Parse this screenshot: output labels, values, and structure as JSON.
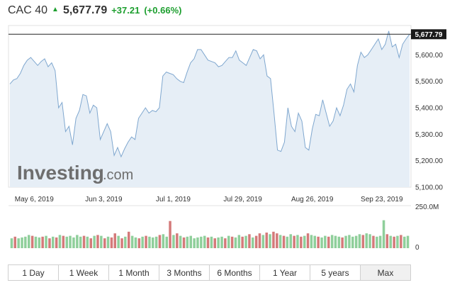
{
  "header": {
    "name": "CAC 40",
    "price": "5,677.79",
    "change": "+37.21",
    "change_pct": "(+0.66%)",
    "up_color": "#1d9f2f"
  },
  "last_label": "5,677.79",
  "logo": {
    "main": "Investing",
    "suffix": ".com"
  },
  "volume_label": "250.0M",
  "volume_zero": "0",
  "tabs": [
    {
      "label": "1 Day",
      "active": false
    },
    {
      "label": "1 Week",
      "active": false
    },
    {
      "label": "1 Month",
      "active": false
    },
    {
      "label": "3 Months",
      "active": false
    },
    {
      "label": "6 Months",
      "active": false
    },
    {
      "label": "1 Year",
      "active": false
    },
    {
      "label": "5 years",
      "active": false
    },
    {
      "label": "Max",
      "active": true
    }
  ],
  "chart_data": {
    "type": "area",
    "title": "",
    "xlabel": "",
    "ylabel": "",
    "ylim": [
      5100,
      5700
    ],
    "yticks": [
      5100,
      5200,
      5300,
      5400,
      5500,
      5600
    ],
    "ytick_labels": [
      "5,100.00",
      "5,200.00",
      "5,300.00",
      "5,400.00",
      "5,500.00",
      "5,600.00"
    ],
    "x_ticks": [
      {
        "label": "May 6, 2019",
        "index": 7
      },
      {
        "label": "Jun 3, 2019",
        "index": 27
      },
      {
        "label": "Jul 1, 2019",
        "index": 47
      },
      {
        "label": "Jul 29, 2019",
        "index": 67
      },
      {
        "label": "Aug 26, 2019",
        "index": 87
      },
      {
        "label": "Sep 23, 2019",
        "index": 107
      }
    ],
    "line_color": "#7fa7cf",
    "fill_color": "#e6eef6",
    "values": [
      5490,
      5505,
      5510,
      5530,
      5560,
      5580,
      5590,
      5575,
      5560,
      5575,
      5585,
      5555,
      5570,
      5540,
      5400,
      5420,
      5310,
      5330,
      5260,
      5360,
      5390,
      5450,
      5445,
      5380,
      5410,
      5400,
      5280,
      5310,
      5340,
      5310,
      5220,
      5250,
      5215,
      5245,
      5270,
      5290,
      5280,
      5360,
      5380,
      5400,
      5380,
      5390,
      5385,
      5400,
      5520,
      5535,
      5530,
      5525,
      5510,
      5500,
      5495,
      5535,
      5570,
      5585,
      5620,
      5620,
      5600,
      5580,
      5575,
      5570,
      5555,
      5560,
      5575,
      5590,
      5590,
      5615,
      5580,
      5570,
      5560,
      5590,
      5620,
      5615,
      5585,
      5600,
      5520,
      5510,
      5380,
      5240,
      5235,
      5270,
      5400,
      5330,
      5310,
      5380,
      5350,
      5250,
      5240,
      5320,
      5375,
      5370,
      5430,
      5380,
      5330,
      5350,
      5400,
      5370,
      5410,
      5470,
      5490,
      5460,
      5560,
      5610,
      5590,
      5600,
      5620,
      5640,
      5660,
      5620,
      5640,
      5690,
      5630,
      5640,
      5590,
      5640,
      5660,
      5677.79
    ],
    "last_value": 5677.79,
    "volume": {
      "ylim": [
        0,
        250
      ],
      "up_color": "#8fcf9b",
      "down_color": "#d47a7a",
      "bars": [
        {
          "v": 60,
          "up": true
        },
        {
          "v": 70,
          "up": false
        },
        {
          "v": 60,
          "up": true
        },
        {
          "v": 65,
          "up": true
        },
        {
          "v": 70,
          "up": true
        },
        {
          "v": 80,
          "up": true
        },
        {
          "v": 75,
          "up": false
        },
        {
          "v": 70,
          "up": true
        },
        {
          "v": 65,
          "up": true
        },
        {
          "v": 70,
          "up": false
        },
        {
          "v": 75,
          "up": true
        },
        {
          "v": 60,
          "up": false
        },
        {
          "v": 70,
          "up": true
        },
        {
          "v": 65,
          "up": false
        },
        {
          "v": 80,
          "up": true
        },
        {
          "v": 75,
          "up": false
        },
        {
          "v": 70,
          "up": true
        },
        {
          "v": 75,
          "up": true
        },
        {
          "v": 65,
          "up": true
        },
        {
          "v": 80,
          "up": true
        },
        {
          "v": 70,
          "up": true
        },
        {
          "v": 75,
          "up": false
        },
        {
          "v": 70,
          "up": true
        },
        {
          "v": 60,
          "up": false
        },
        {
          "v": 75,
          "up": true
        },
        {
          "v": 80,
          "up": false
        },
        {
          "v": 75,
          "up": true
        },
        {
          "v": 60,
          "up": false
        },
        {
          "v": 70,
          "up": true
        },
        {
          "v": 65,
          "up": false
        },
        {
          "v": 90,
          "up": false
        },
        {
          "v": 75,
          "up": true
        },
        {
          "v": 60,
          "up": false
        },
        {
          "v": 70,
          "up": true
        },
        {
          "v": 100,
          "up": false
        },
        {
          "v": 75,
          "up": true
        },
        {
          "v": 65,
          "up": true
        },
        {
          "v": 60,
          "up": false
        },
        {
          "v": 70,
          "up": true
        },
        {
          "v": 75,
          "up": false
        },
        {
          "v": 70,
          "up": true
        },
        {
          "v": 65,
          "up": true
        },
        {
          "v": 70,
          "up": true
        },
        {
          "v": 80,
          "up": false
        },
        {
          "v": 85,
          "up": true
        },
        {
          "v": 70,
          "up": true
        },
        {
          "v": 165,
          "up": false
        },
        {
          "v": 80,
          "up": true
        },
        {
          "v": 90,
          "up": false
        },
        {
          "v": 75,
          "up": true
        },
        {
          "v": 65,
          "up": false
        },
        {
          "v": 70,
          "up": true
        },
        {
          "v": 75,
          "up": true
        },
        {
          "v": 60,
          "up": true
        },
        {
          "v": 65,
          "up": true
        },
        {
          "v": 70,
          "up": true
        },
        {
          "v": 75,
          "up": true
        },
        {
          "v": 65,
          "up": false
        },
        {
          "v": 70,
          "up": true
        },
        {
          "v": 60,
          "up": false
        },
        {
          "v": 65,
          "up": true
        },
        {
          "v": 70,
          "up": true
        },
        {
          "v": 60,
          "up": false
        },
        {
          "v": 75,
          "up": true
        },
        {
          "v": 70,
          "up": false
        },
        {
          "v": 65,
          "up": true
        },
        {
          "v": 80,
          "up": true
        },
        {
          "v": 70,
          "up": false
        },
        {
          "v": 75,
          "up": true
        },
        {
          "v": 85,
          "up": false
        },
        {
          "v": 65,
          "up": true
        },
        {
          "v": 75,
          "up": false
        },
        {
          "v": 90,
          "up": false
        },
        {
          "v": 80,
          "up": true
        },
        {
          "v": 95,
          "up": false
        },
        {
          "v": 85,
          "up": true
        },
        {
          "v": 100,
          "up": false
        },
        {
          "v": 90,
          "up": false
        },
        {
          "v": 80,
          "up": true
        },
        {
          "v": 75,
          "up": false
        },
        {
          "v": 70,
          "up": true
        },
        {
          "v": 85,
          "up": true
        },
        {
          "v": 75,
          "up": false
        },
        {
          "v": 80,
          "up": true
        },
        {
          "v": 70,
          "up": false
        },
        {
          "v": 75,
          "up": true
        },
        {
          "v": 90,
          "up": false
        },
        {
          "v": 80,
          "up": true
        },
        {
          "v": 75,
          "up": true
        },
        {
          "v": 70,
          "up": false
        },
        {
          "v": 65,
          "up": true
        },
        {
          "v": 75,
          "up": true
        },
        {
          "v": 70,
          "up": false
        },
        {
          "v": 80,
          "up": true
        },
        {
          "v": 75,
          "up": true
        },
        {
          "v": 70,
          "up": true
        },
        {
          "v": 65,
          "up": false
        },
        {
          "v": 75,
          "up": true
        },
        {
          "v": 80,
          "up": true
        },
        {
          "v": 70,
          "up": true
        },
        {
          "v": 75,
          "up": true
        },
        {
          "v": 85,
          "up": true
        },
        {
          "v": 80,
          "up": false
        },
        {
          "v": 90,
          "up": true
        },
        {
          "v": 85,
          "up": true
        },
        {
          "v": 75,
          "up": false
        },
        {
          "v": 70,
          "up": true
        },
        {
          "v": 75,
          "up": true
        },
        {
          "v": 170,
          "up": true
        },
        {
          "v": 85,
          "up": false
        },
        {
          "v": 75,
          "up": true
        },
        {
          "v": 70,
          "up": false
        },
        {
          "v": 75,
          "up": true
        },
        {
          "v": 80,
          "up": false
        },
        {
          "v": 70,
          "up": true
        },
        {
          "v": 75,
          "up": true
        }
      ]
    }
  }
}
